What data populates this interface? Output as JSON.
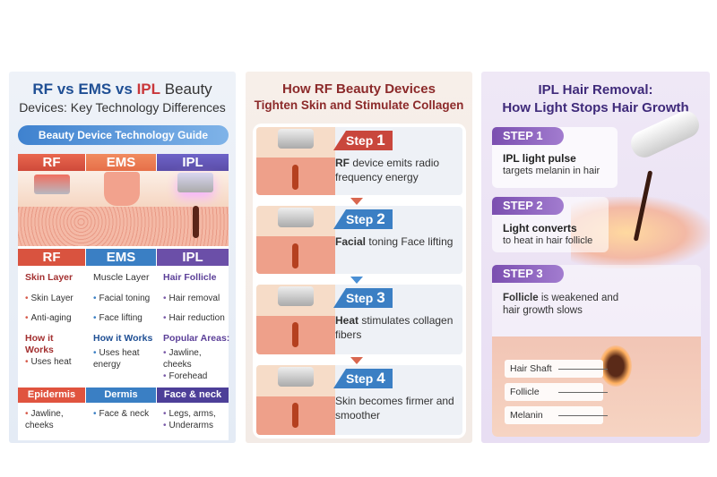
{
  "panel_rf_ems_ipl": {
    "title": {
      "rf": "RF",
      "vs1": " vs ",
      "ems": "EMS",
      "vs2": " vs ",
      "ipl": "IPL",
      "line1_rest": " Beauty",
      "line2": "Devices: Key Technology Differences"
    },
    "guide_label": "Beauty Device Technology Guide",
    "columns": [
      {
        "name": "RF",
        "color": "#d9533f",
        "layer": "Skin Layer",
        "bullets": [
          "Skin Layer",
          "Anti-aging"
        ],
        "section": "How it Works",
        "section_bullets": [
          "Uses heat"
        ],
        "footer": "Epidermis",
        "footer_bullets": [
          "Jawline, cheeks"
        ]
      },
      {
        "name": "EMS",
        "color": "#3a7fc4",
        "layer": "Muscle Layer",
        "bullets": [
          "Facial toning",
          "Face lifting"
        ],
        "section": "How it Works",
        "section_bullets": [
          "Uses heat energy"
        ],
        "footer": "Dermis",
        "footer_bullets": [
          "Face & neck"
        ]
      },
      {
        "name": "IPL",
        "color": "#6b4fa8",
        "layer": "Hair Follicle",
        "bullets": [
          "Hair removal",
          "Hair reduction"
        ],
        "section": "Popular Areas:",
        "section_bullets": [
          "Jawline, cheeks",
          "Forehead"
        ],
        "footer": "Face & neck",
        "footer_bullets": [
          "Legs, arms,",
          "Underarms"
        ]
      }
    ]
  },
  "panel_rf_steps": {
    "title_line1": "How RF Beauty Devices",
    "title_line2": "Tighten Skin and Stimulate Collagen",
    "steps": [
      {
        "label": "Step",
        "num": "1",
        "bold": "RF",
        "text": " device emits radio frequency energy",
        "color": "#c9473c"
      },
      {
        "label": "Step",
        "num": "2",
        "bold": "Facial",
        "text": " toning Face lifting",
        "color": "#3b7fc4"
      },
      {
        "label": "Step",
        "num": "3",
        "bold": "Heat",
        "text": " stimulates collagen fibers",
        "color": "#3b7fc4"
      },
      {
        "label": "Step",
        "num": "4",
        "bold": "",
        "text": "Skin becomes firmer and smoother",
        "color": "#3b7fc4"
      }
    ]
  },
  "panel_ipl": {
    "title_line1": "IPL Hair Removal:",
    "title_line2": "How Light Stops Hair Growth",
    "steps": [
      {
        "label": "STEP 1",
        "bold": "IPL light pulse",
        "text": "targets melanin in hair"
      },
      {
        "label": "STEP 2",
        "bold": "Light converts",
        "text": "to heat in hair follicle"
      },
      {
        "label": "STEP 3",
        "bold": "Follicle",
        "text": " is weakened and hair growth slows"
      }
    ],
    "labels": [
      "Hair Shaft",
      "Follicle",
      "Melanin"
    ]
  }
}
